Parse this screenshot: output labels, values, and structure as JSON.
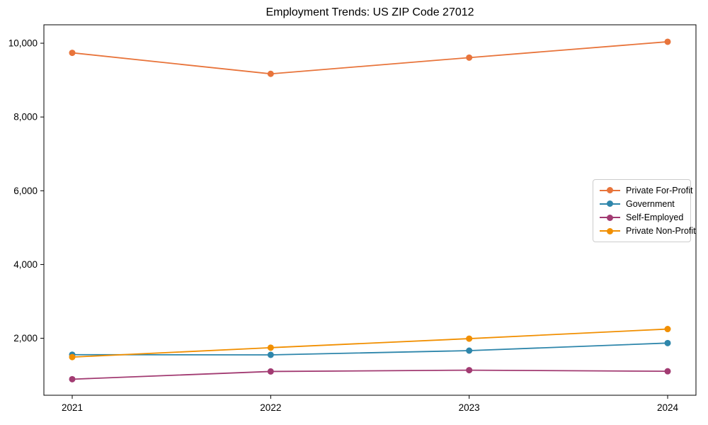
{
  "chart_data": {
    "type": "line",
    "title": "Employment Trends: US ZIP Code 27012",
    "xlabel": "",
    "ylabel": "",
    "categories": [
      "2021",
      "2022",
      "2023",
      "2024"
    ],
    "series": [
      {
        "name": "Private For-Profit",
        "color": "#E8743B",
        "values": [
          9740,
          9170,
          9610,
          10040
        ]
      },
      {
        "name": "Government",
        "color": "#2E86AB",
        "values": [
          1555,
          1550,
          1665,
          1870
        ]
      },
      {
        "name": "Self-Employed",
        "color": "#A23B72",
        "values": [
          890,
          1100,
          1135,
          1105
        ]
      },
      {
        "name": "Private Non-Profit",
        "color": "#F18F01",
        "values": [
          1490,
          1745,
          1990,
          2250
        ]
      }
    ],
    "ylim": [
      455,
      10500
    ],
    "yticks": [
      {
        "value": 2000,
        "label": "2,000"
      },
      {
        "value": 4000,
        "label": "4,000"
      },
      {
        "value": 6000,
        "label": "6,000"
      },
      {
        "value": 8000,
        "label": "8,000"
      },
      {
        "value": 10000,
        "label": "10,000"
      }
    ],
    "grid": false,
    "legend_position": "center right",
    "axis_color": "#000000",
    "background": "#ffffff"
  }
}
